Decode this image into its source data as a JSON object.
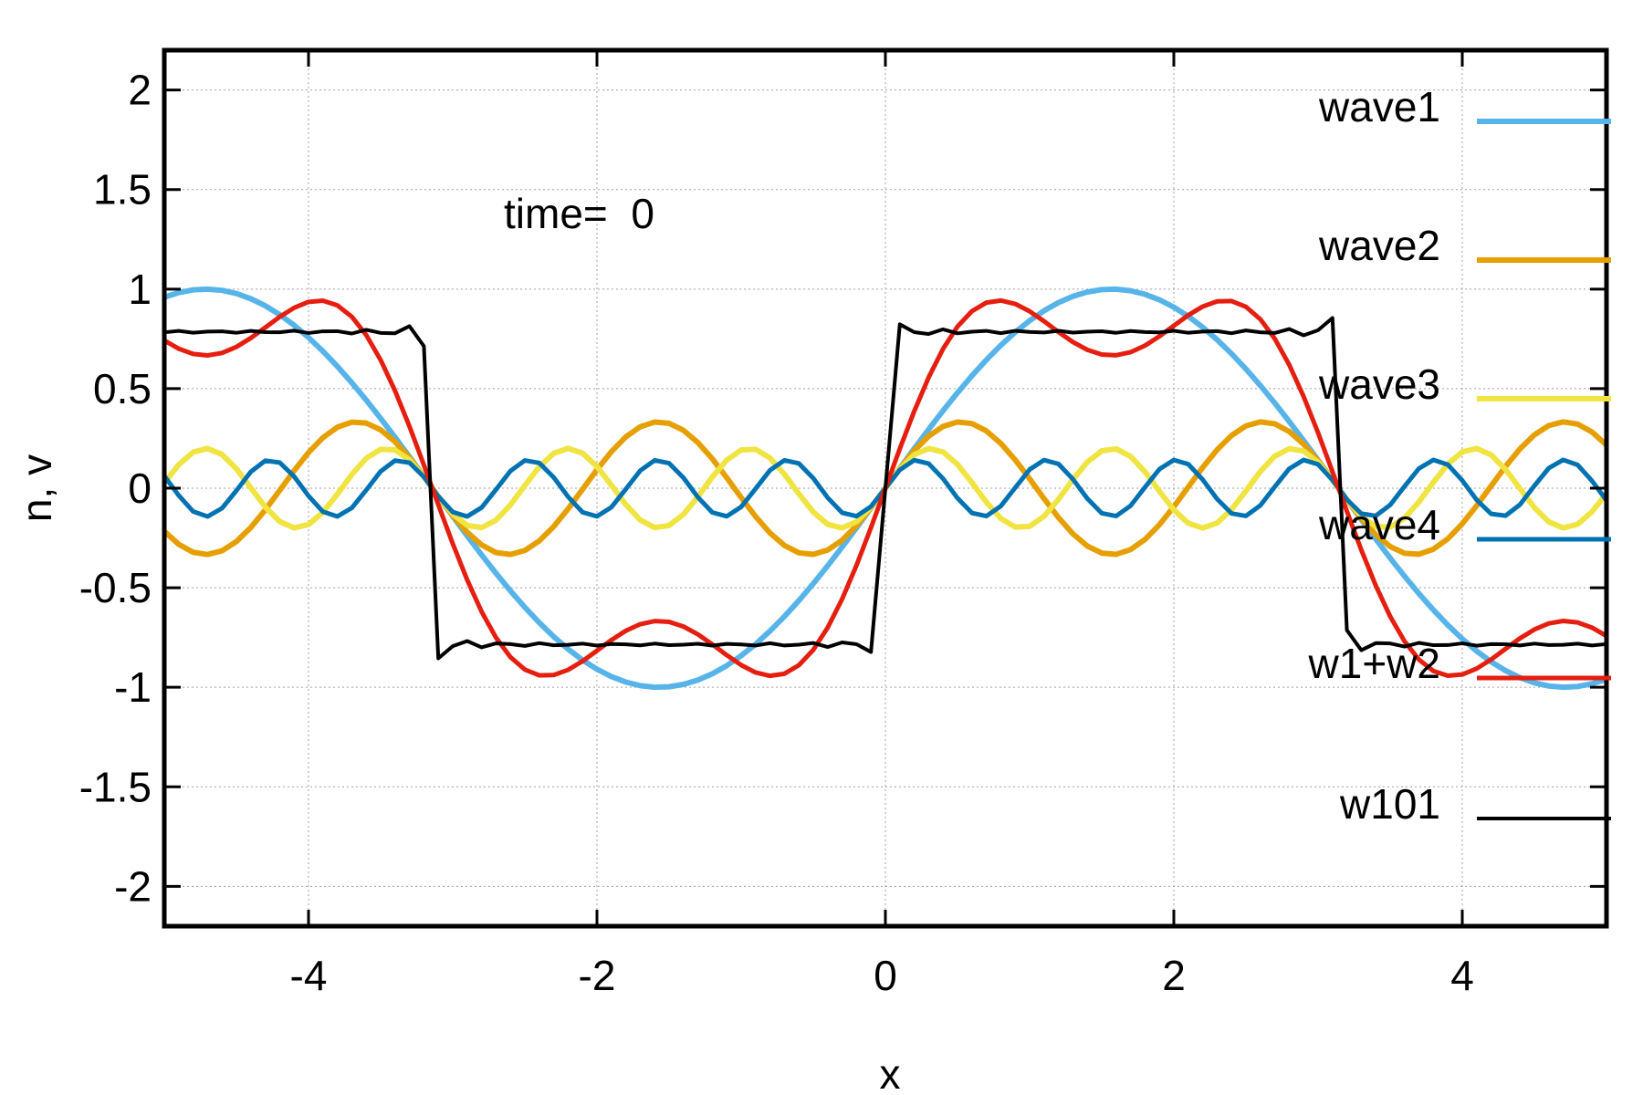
{
  "chart_data": {
    "type": "line",
    "title": "",
    "xlabel": "x",
    "ylabel": "n, v",
    "xlim": [
      -5,
      5
    ],
    "ylim": [
      -2.2,
      2.2
    ],
    "x_ticks": [
      -4,
      -2,
      0,
      2,
      4
    ],
    "x_tick_labels": [
      "-4",
      "-2",
      "0",
      "2",
      "4"
    ],
    "y_ticks": [
      2,
      1.5,
      1,
      0.5,
      0,
      -0.5,
      -1,
      -1.5,
      -2
    ],
    "y_tick_labels": [
      "2",
      "1.5",
      "1",
      "0.5",
      "0",
      "-0.5",
      "-1",
      "-1.5",
      "-2"
    ],
    "grid": true,
    "legend_position": "right",
    "annotation": "time=  0",
    "series": [
      {
        "name": "wave1",
        "color": "#56b4e9",
        "formula": "sin(x)"
      },
      {
        "name": "wave2",
        "color": "#e69f00",
        "formula": "sin(3x)/3"
      },
      {
        "name": "wave3",
        "color": "#f0e442",
        "formula": "sin(5x)/5"
      },
      {
        "name": "wave4",
        "color": "#0072b2",
        "formula": "sin(7x)/7"
      },
      {
        "name": "w1+w2",
        "color": "#e51e10",
        "formula": "sin(x)+sin(3x)/3"
      },
      {
        "name": "w101",
        "color": "#000000",
        "formula": "sum of sin(kx)/k for odd k up to 101"
      }
    ]
  }
}
